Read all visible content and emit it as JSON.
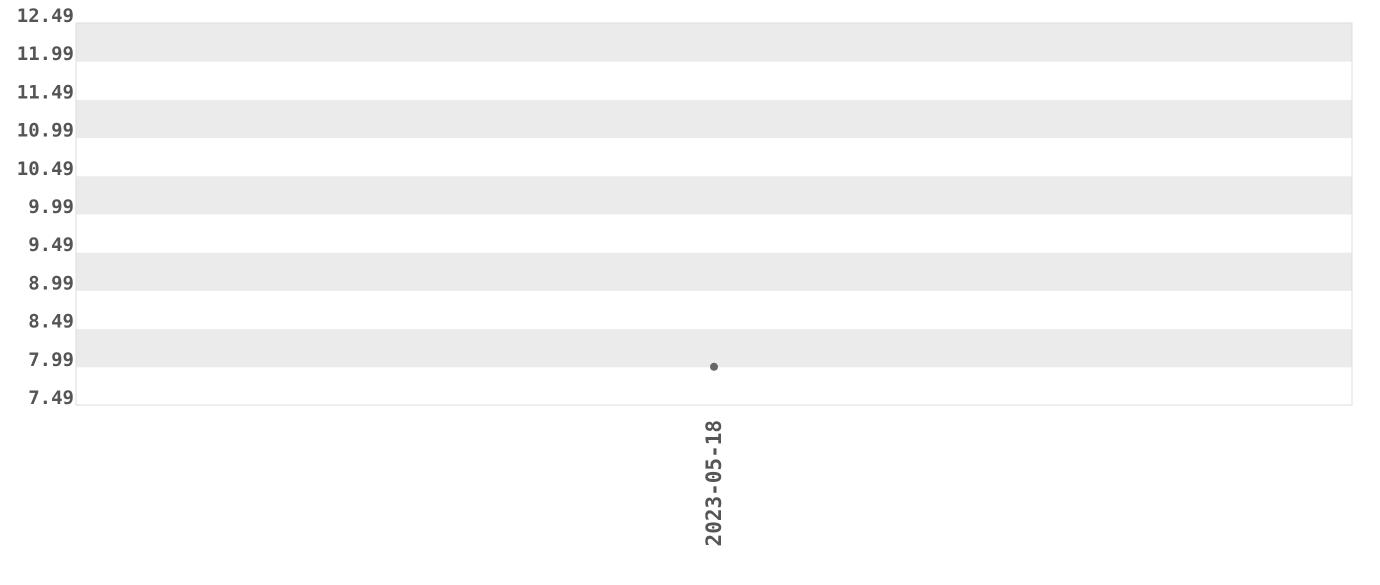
{
  "chart_data": {
    "type": "scatter",
    "title": "",
    "xlabel": "",
    "ylabel": "",
    "categories": [
      "2023-05-18"
    ],
    "series": [
      {
        "values": [
          7.99
        ]
      }
    ],
    "ylim": [
      7.49,
      12.49
    ],
    "yticks": [
      "12.49",
      "11.99",
      "11.49",
      "10.99",
      "10.49",
      "9.99",
      "9.49",
      "8.99",
      "8.49",
      "7.99",
      "7.49"
    ],
    "grid": "alternating horizontal bands",
    "legend": "none",
    "colors": {
      "band": "#ebebeb",
      "point": "#666666",
      "text": "#555555",
      "border": "#dddddd"
    }
  }
}
